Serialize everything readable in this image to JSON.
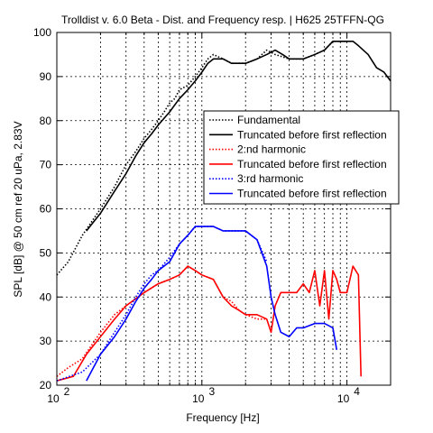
{
  "chart_data": {
    "type": "line",
    "title": "Trolldist v. 6.0 Beta - Dist. and Frequency resp. | H625 25TFFN-QG",
    "xlabel": "Frequency [Hz]",
    "ylabel": "SPL [dB] @ 50 cm ref 20 uPa, 2.83V",
    "xscale": "log",
    "xlim": [
      100,
      20000
    ],
    "ylim": [
      20,
      100
    ],
    "grid": true,
    "legend_position": "right",
    "x_tick_labels": [
      {
        "base": "10",
        "exp": "2",
        "value": 100
      },
      {
        "base": "10",
        "exp": "3",
        "value": 1000
      },
      {
        "base": "10",
        "exp": "4",
        "value": 10000
      }
    ],
    "y_ticks": [
      "20",
      "30",
      "40",
      "50",
      "60",
      "70",
      "80",
      "90",
      "100"
    ],
    "series": [
      {
        "name": "Fundamental",
        "color": "#000000",
        "style": "dotted",
        "points": [
          [
            100,
            45
          ],
          [
            120,
            48
          ],
          [
            150,
            54
          ],
          [
            200,
            60
          ],
          [
            250,
            65
          ],
          [
            300,
            70
          ],
          [
            350,
            73
          ],
          [
            400,
            76
          ],
          [
            450,
            78
          ],
          [
            500,
            80
          ],
          [
            550,
            82
          ],
          [
            600,
            84
          ],
          [
            650,
            85
          ],
          [
            700,
            87
          ],
          [
            800,
            88
          ],
          [
            900,
            90
          ],
          [
            1000,
            92
          ],
          [
            1100,
            94
          ],
          [
            1200,
            95
          ],
          [
            1400,
            94
          ],
          [
            1600,
            93
          ],
          [
            1800,
            93
          ],
          [
            2000,
            93
          ],
          [
            2400,
            94
          ],
          [
            2800,
            96
          ],
          [
            3200,
            95
          ],
          [
            4000,
            94
          ],
          [
            5000,
            94
          ],
          [
            6000,
            95
          ],
          [
            7000,
            96
          ],
          [
            8000,
            98
          ],
          [
            9000,
            98
          ],
          [
            10000,
            98
          ]
        ]
      },
      {
        "name": "Truncated before first reflection",
        "color": "#000000",
        "style": "solid",
        "points": [
          [
            160,
            55
          ],
          [
            200,
            59
          ],
          [
            250,
            64
          ],
          [
            300,
            68
          ],
          [
            350,
            72
          ],
          [
            400,
            75
          ],
          [
            450,
            77
          ],
          [
            500,
            79
          ],
          [
            600,
            82
          ],
          [
            700,
            85
          ],
          [
            800,
            87
          ],
          [
            900,
            89
          ],
          [
            1000,
            91
          ],
          [
            1100,
            93
          ],
          [
            1200,
            94
          ],
          [
            1400,
            94
          ],
          [
            1600,
            93
          ],
          [
            1800,
            93
          ],
          [
            2000,
            93
          ],
          [
            2400,
            94
          ],
          [
            2800,
            95
          ],
          [
            3200,
            96
          ],
          [
            3600,
            95
          ],
          [
            4000,
            94
          ],
          [
            5000,
            94
          ],
          [
            6000,
            95
          ],
          [
            7000,
            96
          ],
          [
            8000,
            98
          ],
          [
            9000,
            98
          ],
          [
            10000,
            98
          ],
          [
            11000,
            98
          ],
          [
            12000,
            97
          ],
          [
            14000,
            95
          ],
          [
            16000,
            92
          ],
          [
            18000,
            91
          ],
          [
            20000,
            89
          ]
        ]
      },
      {
        "name": "2:nd harmonic",
        "color": "#ff0000",
        "style": "dotted",
        "points": [
          [
            100,
            22
          ],
          [
            120,
            24
          ],
          [
            150,
            26
          ],
          [
            200,
            32
          ],
          [
            250,
            36
          ],
          [
            300,
            38
          ],
          [
            400,
            41
          ],
          [
            500,
            43
          ],
          [
            600,
            44
          ],
          [
            700,
            45
          ],
          [
            800,
            47
          ],
          [
            900,
            46
          ],
          [
            1000,
            45
          ],
          [
            1200,
            44
          ],
          [
            1400,
            40
          ],
          [
            1600,
            39
          ],
          [
            1800,
            37
          ],
          [
            2000,
            36
          ],
          [
            2400,
            35
          ],
          [
            2800,
            35
          ]
        ]
      },
      {
        "name": "Truncated before first reflection",
        "color": "#ff0000",
        "style": "solid",
        "points": [
          [
            100,
            21
          ],
          [
            130,
            22
          ],
          [
            160,
            27
          ],
          [
            200,
            31
          ],
          [
            250,
            35
          ],
          [
            300,
            38
          ],
          [
            400,
            41
          ],
          [
            500,
            43
          ],
          [
            600,
            44
          ],
          [
            700,
            45
          ],
          [
            800,
            47
          ],
          [
            900,
            46
          ],
          [
            1000,
            45
          ],
          [
            1200,
            44
          ],
          [
            1400,
            40
          ],
          [
            1600,
            38
          ],
          [
            1800,
            37
          ],
          [
            2000,
            36
          ],
          [
            2400,
            36
          ],
          [
            2800,
            35
          ],
          [
            3000,
            32
          ],
          [
            3200,
            38
          ],
          [
            3500,
            41
          ],
          [
            4000,
            41
          ],
          [
            4500,
            41
          ],
          [
            5000,
            43
          ],
          [
            5500,
            41
          ],
          [
            6000,
            46
          ],
          [
            6500,
            38
          ],
          [
            7000,
            46
          ],
          [
            7500,
            35
          ],
          [
            8000,
            46
          ],
          [
            8500,
            44
          ],
          [
            9000,
            41
          ],
          [
            10000,
            41
          ],
          [
            11000,
            47
          ],
          [
            12000,
            45
          ],
          [
            12500,
            22
          ]
        ]
      },
      {
        "name": "3:rd harmonic",
        "color": "#0000ff",
        "style": "dotted",
        "points": [
          [
            100,
            21
          ],
          [
            150,
            23
          ],
          [
            200,
            27
          ],
          [
            250,
            32
          ],
          [
            300,
            36
          ],
          [
            350,
            40
          ],
          [
            400,
            43
          ],
          [
            450,
            45
          ],
          [
            500,
            46
          ],
          [
            600,
            49
          ],
          [
            700,
            52
          ],
          [
            800,
            54
          ],
          [
            900,
            56
          ],
          [
            1000,
            56
          ],
          [
            1200,
            56
          ],
          [
            1400,
            55
          ],
          [
            1600,
            55
          ],
          [
            2000,
            55
          ],
          [
            2400,
            53
          ],
          [
            2800,
            48
          ]
        ]
      },
      {
        "name": "Truncated before first reflection",
        "color": "#0000ff",
        "style": "solid",
        "points": [
          [
            160,
            21
          ],
          [
            200,
            27
          ],
          [
            250,
            31
          ],
          [
            300,
            35
          ],
          [
            350,
            39
          ],
          [
            400,
            42
          ],
          [
            450,
            44
          ],
          [
            500,
            46
          ],
          [
            600,
            48
          ],
          [
            700,
            52
          ],
          [
            800,
            54
          ],
          [
            900,
            56
          ],
          [
            1000,
            56
          ],
          [
            1200,
            56
          ],
          [
            1400,
            55
          ],
          [
            1600,
            55
          ],
          [
            2000,
            55
          ],
          [
            2400,
            53
          ],
          [
            2800,
            47
          ],
          [
            3000,
            40
          ],
          [
            3200,
            36
          ],
          [
            3500,
            32
          ],
          [
            4000,
            31
          ],
          [
            4500,
            33
          ],
          [
            5000,
            33
          ],
          [
            6000,
            34
          ],
          [
            7000,
            34
          ],
          [
            8000,
            33
          ],
          [
            8500,
            28
          ]
        ]
      }
    ]
  }
}
